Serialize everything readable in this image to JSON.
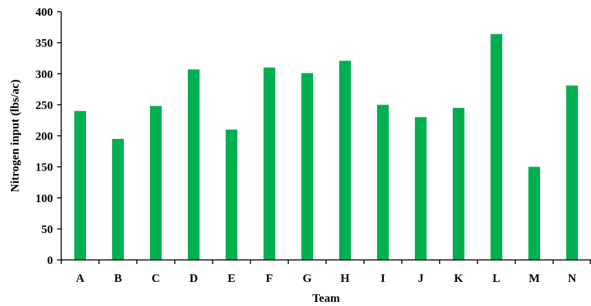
{
  "chart_data": {
    "type": "bar",
    "title": "",
    "xlabel": "Team",
    "ylabel": "Nitrogen input (lbs/ac)",
    "categories": [
      "A",
      "B",
      "C",
      "D",
      "E",
      "F",
      "G",
      "H",
      "I",
      "J",
      "K",
      "L",
      "M",
      "N"
    ],
    "values": [
      240,
      195,
      248,
      307,
      210,
      310,
      301,
      321,
      250,
      230,
      245,
      364,
      150,
      281
    ],
    "ylim": [
      0,
      400
    ],
    "yticks": [
      0,
      50,
      100,
      150,
      200,
      250,
      300,
      350,
      400
    ],
    "grid": false,
    "legend": "none",
    "bar_color": "#00b050",
    "axis_color": "#000000"
  }
}
